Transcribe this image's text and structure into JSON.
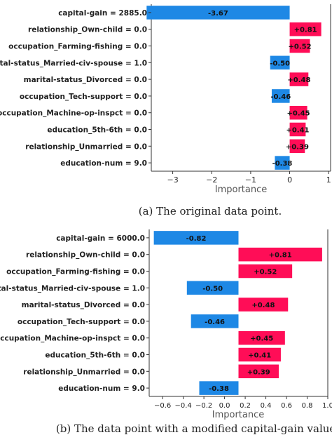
{
  "chart_data": [
    {
      "type": "bar",
      "orientation": "horizontal",
      "categories": [
        "capital-gain = 2885.0",
        "relationship_Own-child = 0.0",
        "occupation_Farming-fishing = 0.0",
        "marital-status_Married-civ-spouse = 1.0",
        "marital-status_Divorced = 0.0",
        "occupation_Tech-support = 0.0",
        "occupation_Machine-op-inspct = 0.0",
        "education_5th-6th = 0.0",
        "relationship_Unmarried = 0.0",
        "education-num = 9.0"
      ],
      "values": [
        -3.67,
        0.81,
        0.52,
        -0.5,
        0.48,
        -0.46,
        0.45,
        0.41,
        0.39,
        -0.38
      ],
      "value_labels": [
        "-3.67",
        "+0.81",
        "+0.52",
        "-0.50",
        "+0.48",
        "-0.46",
        "+0.45",
        "+0.41",
        "+0.39",
        "-0.38"
      ],
      "base": 0,
      "xlabel": "Importance",
      "xlim": [
        -3.55,
        1.05
      ],
      "xticks": [
        -3,
        -2,
        -1,
        0,
        1
      ],
      "xtick_labels": [
        "−3",
        "−2",
        "−1",
        "0",
        "1"
      ],
      "caption": "(a) The original data point."
    },
    {
      "type": "bar",
      "orientation": "horizontal",
      "categories": [
        "capital-gain = 6000.0",
        "relationship_Own-child = 0.0",
        "occupation_Farming-fishing = 0.0",
        "marital-status_Married-civ-spouse = 1.0",
        "marital-status_Divorced = 0.0",
        "occupation_Tech-support = 0.0",
        "occupation_Machine-op-inspct = 0.0",
        "education_5th-6th = 0.0",
        "relationship_Unmarried = 0.0",
        "education-num = 9.0"
      ],
      "values": [
        -0.82,
        0.81,
        0.52,
        -0.5,
        0.48,
        -0.46,
        0.45,
        0.41,
        0.39,
        -0.38
      ],
      "value_labels": [
        "-0.82",
        "+0.81",
        "+0.52",
        "-0.50",
        "+0.48",
        "-0.46",
        "+0.45",
        "+0.41",
        "+0.39",
        "-0.38"
      ],
      "base": 0.135,
      "xlabel": "Importance",
      "xlim": [
        -0.73,
        1.0
      ],
      "xticks": [
        -0.6,
        -0.4,
        -0.2,
        0.0,
        0.2,
        0.4,
        0.6,
        0.8,
        1.0
      ],
      "xtick_labels": [
        "−0.6",
        "−0.4",
        "−0.2",
        "0.0",
        "0.2",
        "0.4",
        "0.6",
        "0.8",
        "1.0"
      ],
      "caption": "(b) The data point with a modified capital-gain value."
    }
  ],
  "colors": {
    "positive": "#ff0d57",
    "negative": "#1e88e5",
    "axis": "#333333",
    "text": "#222222"
  }
}
